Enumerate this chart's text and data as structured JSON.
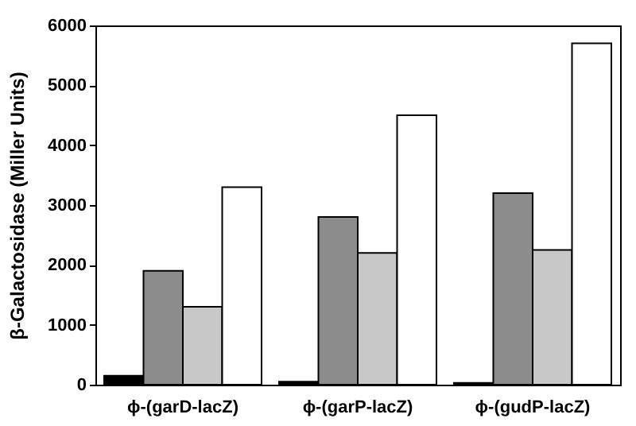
{
  "chart_data": {
    "type": "bar",
    "ylabel": "β-Galactosidase (Miller Units)",
    "categories": [
      "ϕ-(garD-lacZ)",
      "ϕ-(garP-lacZ)",
      "ϕ-(gudP-lacZ)"
    ],
    "series": [
      {
        "color": "#000000",
        "values": [
          150,
          50,
          30
        ]
      },
      {
        "color": "#8c8c8c",
        "values": [
          1900,
          2800,
          3200
        ]
      },
      {
        "color": "#c8c8c8",
        "values": [
          1300,
          2200,
          2250
        ]
      },
      {
        "color": "#ffffff",
        "values": [
          3300,
          4500,
          5700
        ]
      }
    ],
    "ylim": [
      0,
      6000
    ],
    "yticks": [
      0,
      1000,
      2000,
      3000,
      4000,
      5000,
      6000
    ],
    "grid": false,
    "legend": false
  }
}
